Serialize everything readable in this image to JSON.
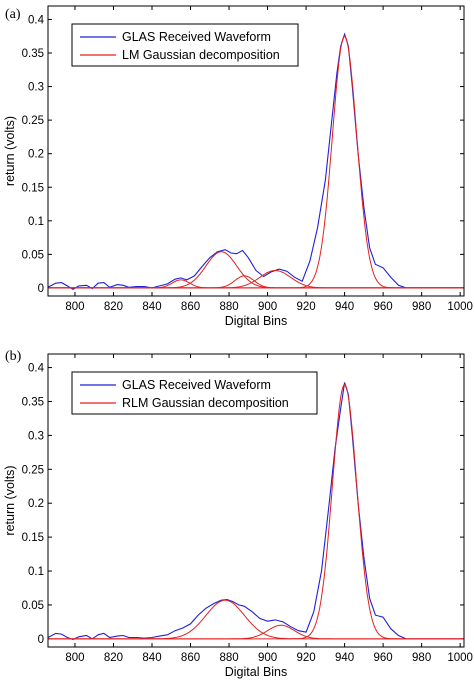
{
  "colors": {
    "received": "#2020d8",
    "fit": "#e02020"
  },
  "chart_data": [
    {
      "type": "line",
      "panel_label": "(a)",
      "xlabel": "Digital Bins",
      "ylabel": "return (volts)",
      "xlim": [
        786,
        1002
      ],
      "ylim": [
        -0.012,
        0.42
      ],
      "xticks": [
        "800",
        "820",
        "840",
        "860",
        "880",
        "900",
        "920",
        "940",
        "960",
        "980",
        "1000"
      ],
      "yticks": [
        "0",
        "0.05",
        "0.1",
        "0.15",
        "0.2",
        "0.25",
        "0.3",
        "0.35",
        "0.4"
      ],
      "legend_position": "top-left",
      "series": [
        {
          "name": "GLAS Received Waveform",
          "x": [
            786,
            790,
            793,
            796,
            799,
            802,
            806,
            809,
            812,
            815,
            818,
            822,
            825,
            828,
            832,
            836,
            840,
            844,
            848,
            852,
            855,
            858,
            862,
            866,
            870,
            874,
            878,
            881,
            884,
            887,
            890,
            894,
            898,
            902,
            906,
            910,
            914,
            918,
            922,
            926,
            930,
            933,
            936,
            938,
            940,
            942,
            944,
            947,
            950,
            953,
            956,
            960,
            964,
            968,
            972,
            976,
            980,
            985,
            990,
            1002
          ],
          "y": [
            0.001,
            0.007,
            0.008,
            0.003,
            -0.002,
            0.003,
            0.004,
            -0.001,
            0.007,
            0.008,
            0.001,
            0.005,
            0.004,
            0.001,
            0.002,
            0.002,
            0.0,
            0.003,
            0.006,
            0.013,
            0.015,
            0.012,
            0.018,
            0.032,
            0.045,
            0.054,
            0.057,
            0.052,
            0.051,
            0.056,
            0.045,
            0.026,
            0.017,
            0.024,
            0.028,
            0.025,
            0.016,
            0.01,
            0.04,
            0.09,
            0.16,
            0.24,
            0.32,
            0.36,
            0.378,
            0.36,
            0.3,
            0.2,
            0.12,
            0.06,
            0.035,
            0.03,
            0.016,
            0.004,
            0.0,
            0.0,
            0.0,
            0.0,
            0.0,
            0.0
          ]
        },
        {
          "name": "LM Gaussian decomposition",
          "components": [
            {
              "center": 940,
              "amplitude": 0.375,
              "sigma": 6.3
            },
            {
              "center": 876,
              "amplitude": 0.054,
              "sigma": 8.0
            },
            {
              "center": 904,
              "amplitude": 0.026,
              "sigma": 8.0
            },
            {
              "center": 855,
              "amplitude": 0.012,
              "sigma": 4.5
            },
            {
              "center": 888,
              "amplitude": 0.018,
              "sigma": 5.0
            }
          ]
        }
      ]
    },
    {
      "type": "line",
      "panel_label": "(b)",
      "xlabel": "Digital Bins",
      "ylabel": "return (volts)",
      "xlim": [
        786,
        1002
      ],
      "ylim": [
        -0.012,
        0.42
      ],
      "xticks": [
        "800",
        "820",
        "840",
        "860",
        "880",
        "900",
        "920",
        "940",
        "960",
        "980",
        "1000"
      ],
      "yticks": [
        "0",
        "0.05",
        "0.1",
        "0.15",
        "0.2",
        "0.25",
        "0.3",
        "0.35",
        "0.4"
      ],
      "legend_position": "top-left",
      "series": [
        {
          "name": "GLAS Received Waveform",
          "x": [
            786,
            790,
            793,
            796,
            799,
            802,
            806,
            809,
            812,
            815,
            818,
            822,
            825,
            828,
            832,
            836,
            840,
            844,
            848,
            852,
            856,
            860,
            864,
            868,
            872,
            876,
            879,
            882,
            885,
            888,
            892,
            896,
            900,
            904,
            908,
            912,
            916,
            920,
            924,
            928,
            932,
            935,
            938,
            940,
            942,
            944,
            947,
            950,
            953,
            956,
            960,
            964,
            968,
            972,
            976,
            980,
            985,
            990,
            1002
          ],
          "y": [
            0.002,
            0.008,
            0.007,
            0.002,
            -0.001,
            0.003,
            0.005,
            0.0,
            0.006,
            0.008,
            0.002,
            0.004,
            0.005,
            0.002,
            0.002,
            0.001,
            0.002,
            0.004,
            0.006,
            0.012,
            0.016,
            0.022,
            0.035,
            0.045,
            0.052,
            0.057,
            0.058,
            0.055,
            0.05,
            0.048,
            0.04,
            0.03,
            0.026,
            0.028,
            0.025,
            0.018,
            0.012,
            0.01,
            0.04,
            0.1,
            0.2,
            0.28,
            0.34,
            0.378,
            0.36,
            0.3,
            0.2,
            0.12,
            0.06,
            0.035,
            0.032,
            0.015,
            0.005,
            0.0,
            0.0,
            0.0,
            0.0,
            0.0,
            0.0
          ]
        },
        {
          "name": "RLM Gaussian decomposition",
          "components": [
            {
              "center": 940,
              "amplitude": 0.375,
              "sigma": 6.3
            },
            {
              "center": 878,
              "amplitude": 0.057,
              "sigma": 10.0
            },
            {
              "center": 907,
              "amplitude": 0.02,
              "sigma": 7.0
            }
          ]
        }
      ]
    }
  ]
}
